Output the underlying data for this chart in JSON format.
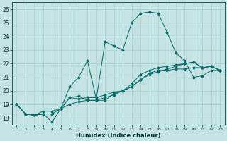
{
  "xlabel": "Humidex (Indice chaleur)",
  "xlim": [
    -0.5,
    23.5
  ],
  "ylim": [
    17.5,
    26.5
  ],
  "yticks": [
    18,
    19,
    20,
    21,
    22,
    23,
    24,
    25,
    26
  ],
  "xticks": [
    0,
    1,
    2,
    3,
    4,
    5,
    6,
    7,
    8,
    9,
    10,
    11,
    12,
    13,
    14,
    15,
    16,
    17,
    18,
    19,
    20,
    21,
    22,
    23
  ],
  "bg_color": "#c5e3e3",
  "grid_color": "#a8cdcd",
  "line_color": "#006868",
  "series": [
    {
      "x": [
        0,
        1,
        2,
        3,
        4,
        5,
        6,
        7,
        8,
        9,
        10,
        11,
        12,
        13,
        14,
        15,
        16,
        17,
        18,
        19,
        20,
        21,
        22,
        23
      ],
      "y": [
        19.0,
        18.3,
        18.2,
        18.3,
        18.3,
        18.7,
        19.0,
        19.2,
        19.3,
        19.3,
        19.5,
        19.7,
        20.0,
        20.3,
        20.8,
        21.2,
        21.4,
        21.6,
        21.8,
        22.0,
        22.1,
        21.7,
        21.8,
        21.5
      ]
    },
    {
      "x": [
        0,
        1,
        2,
        3,
        4,
        5,
        6,
        7,
        8,
        9,
        10,
        11,
        12,
        13,
        14,
        15,
        16,
        17,
        18,
        19,
        20,
        21,
        22,
        23
      ],
      "y": [
        19.0,
        18.3,
        18.2,
        18.3,
        18.3,
        18.7,
        19.5,
        19.6,
        19.3,
        19.3,
        19.3,
        19.8,
        20.0,
        20.5,
        21.2,
        21.5,
        21.7,
        21.8,
        21.9,
        22.0,
        22.1,
        21.7,
        21.8,
        21.5
      ]
    },
    {
      "x": [
        0,
        1,
        2,
        3,
        4,
        5,
        6,
        7,
        8,
        9,
        10,
        11,
        12,
        13,
        14,
        15,
        16,
        17,
        18,
        19,
        20,
        21,
        22,
        23
      ],
      "y": [
        19.0,
        18.3,
        18.2,
        18.5,
        18.5,
        18.7,
        19.5,
        19.4,
        19.5,
        19.5,
        19.7,
        19.9,
        20.0,
        20.3,
        20.8,
        21.3,
        21.5,
        21.5,
        21.6,
        21.6,
        21.7,
        21.7,
        21.8,
        21.5
      ]
    },
    {
      "x": [
        0,
        1,
        2,
        3,
        4,
        5,
        6,
        7,
        8,
        9,
        10,
        11,
        12,
        13,
        14,
        15,
        16,
        17,
        18,
        19,
        20,
        21,
        22,
        23
      ],
      "y": [
        19.0,
        18.3,
        18.2,
        18.3,
        17.7,
        18.7,
        20.3,
        21.0,
        22.2,
        19.4,
        23.6,
        23.3,
        23.0,
        25.0,
        25.7,
        25.8,
        25.7,
        24.3,
        22.8,
        22.2,
        21.0,
        21.1,
        21.5,
        21.5
      ]
    }
  ],
  "figsize": [
    3.2,
    2.0
  ],
  "dpi": 100
}
